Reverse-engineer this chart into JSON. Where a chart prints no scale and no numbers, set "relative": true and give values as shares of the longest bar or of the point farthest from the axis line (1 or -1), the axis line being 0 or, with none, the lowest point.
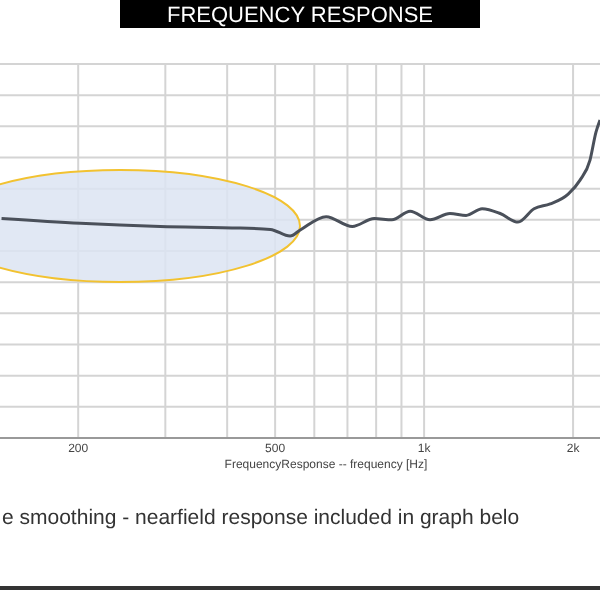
{
  "chart_data": {
    "type": "line",
    "title": "FREQUENCY RESPONSE",
    "xlabel": "FrequencyResponse -- frequency [Hz]",
    "relative": true,
    "log": "x",
    "grid": true,
    "marker": "none",
    "line_style": "solid",
    "xlim": [
      139,
      2267
    ],
    "xticks": [
      200,
      {
        "value": 300,
        "label": null
      },
      {
        "value": 400,
        "label": null
      },
      500,
      {
        "value": 600,
        "label": null
      },
      {
        "value": 700,
        "label": null
      },
      {
        "value": 800,
        "label": null
      },
      {
        "value": 900,
        "label": null
      },
      {
        "value": 1000,
        "label": "1k"
      },
      {
        "value": 2000,
        "label": "2k"
      }
    ],
    "annotations": [
      "e smoothing - nearfield response included in graph belo"
    ],
    "series": [
      {
        "color": "#4a505a",
        "x": [
          140,
          202,
          293,
          425,
          489,
          536,
          562,
          634,
          716,
          793,
          861,
          937,
          1028,
          1128,
          1216,
          1310,
          1425,
          1548,
          1668,
          1798,
          1955,
          2066,
          2164,
          2225,
          2267
        ],
        "values": [
          0.69,
          0.675,
          0.665,
          0.66,
          0.656,
          0.635,
          0.654,
          0.696,
          0.665,
          0.69,
          0.686,
          0.713,
          0.686,
          0.706,
          0.7,
          0.721,
          0.706,
          0.679,
          0.721,
          0.736,
          0.767,
          0.811,
          0.874,
          0.962,
          1
        ]
      }
    ]
  }
}
